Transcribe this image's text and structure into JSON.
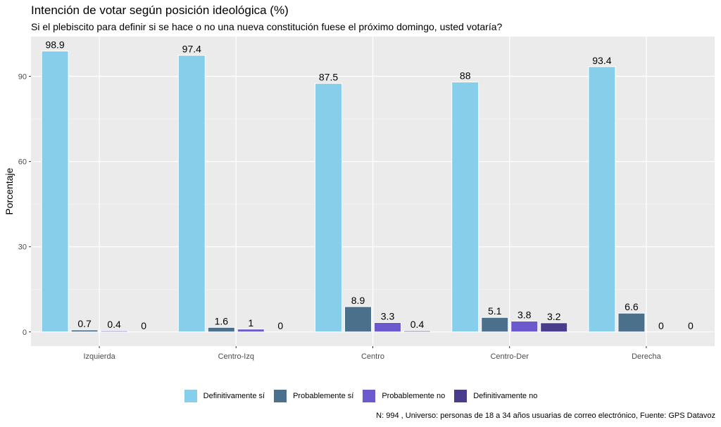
{
  "chart_data": {
    "type": "bar",
    "title": "Intención de votar según posición ideológica (%)",
    "subtitle": "Si el plebiscito para definir si se hace o no una nueva constitución fuese el próximo domingo, usted votaría?",
    "xlabel": "",
    "ylabel": "Porcentaje",
    "caption": "N: 994 , Universo: personas de 18 a 34 años usuarias de correo electrónico, Fuente: GPS Datavoz",
    "categories": [
      "Izquierda",
      "Centro-Izq",
      "Centro",
      "Centro-Der",
      "Derecha"
    ],
    "series": [
      {
        "name": "Definitivamente sí",
        "color": "#87CEEB",
        "values": [
          98.9,
          97.4,
          87.5,
          88,
          93.4
        ],
        "labels": [
          "98.9",
          "97.4",
          "87.5",
          "88",
          "93.4"
        ]
      },
      {
        "name": "Probablemente sí",
        "color": "#4A708B",
        "values": [
          0.7,
          1.6,
          8.9,
          5.1,
          6.6
        ],
        "labels": [
          "0.7",
          "1.6",
          "8.9",
          "5.1",
          "6.6"
        ]
      },
      {
        "name": "Probablemente no",
        "color": "#6A5ACD",
        "values": [
          0.4,
          1,
          3.3,
          3.8,
          0
        ],
        "labels": [
          "0.4",
          "1",
          "3.3",
          "3.8",
          "0"
        ]
      },
      {
        "name": "Definitivamente no",
        "color": "#483D8B",
        "values": [
          0,
          0,
          0.4,
          3.2,
          0
        ],
        "labels": [
          "0",
          "0",
          "0.4",
          "3.2",
          "0"
        ]
      }
    ],
    "yticks": [
      0,
      30,
      60,
      90
    ],
    "ylim": [
      -5,
      104
    ],
    "grid": true,
    "legend_position": "bottom"
  }
}
